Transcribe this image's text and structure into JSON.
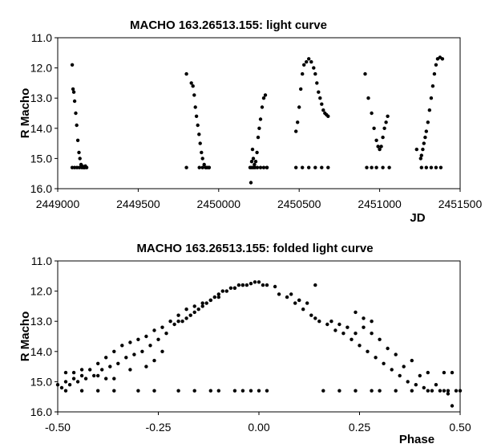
{
  "chart_data": [
    {
      "type": "scatter",
      "title": "MACHO 163.26513.155: light curve",
      "xlabel": "JD",
      "ylabel": "R Macho",
      "xlim": [
        2449000,
        2451500
      ],
      "ylim": [
        11.0,
        16.0
      ],
      "y_inverted": true,
      "x_ticks": [
        "2449000",
        "2449500",
        "2450000",
        "2450500",
        "2451000",
        "2451500"
      ],
      "y_ticks": [
        "11.0",
        "12.0",
        "13.0",
        "14.0",
        "15.0",
        "16.0"
      ],
      "series": [
        {
          "x": [
            2449090,
            2449095,
            2449100,
            2449105,
            2449112,
            2449118,
            2449125,
            2449132,
            2449138,
            2449145,
            2449152,
            2449160,
            2449168,
            2449172,
            2449090,
            2449105,
            2449120,
            2449135,
            2449150,
            2449165,
            2449180,
            2449800,
            2449830,
            2449840,
            2449848,
            2449855,
            2449862,
            2449870,
            2449878,
            2449885,
            2449893,
            2449900,
            2449910,
            2449920,
            2449930,
            2449940,
            2449880,
            2449900,
            2449920,
            2449940,
            2449800,
            2450200,
            2450205,
            2450210,
            2450215,
            2450222,
            2450230,
            2450238,
            2450245,
            2450252,
            2450260,
            2450270,
            2450280,
            2450290,
            2450300,
            2450195,
            2450205,
            2450215,
            2450225,
            2450240,
            2450260,
            2450280,
            2450300,
            2450480,
            2450490,
            2450500,
            2450510,
            2450520,
            2450530,
            2450545,
            2450560,
            2450575,
            2450590,
            2450600,
            2450610,
            2450620,
            2450630,
            2450640,
            2450650,
            2450660,
            2450670,
            2450680,
            2450480,
            2450520,
            2450560,
            2450600,
            2450640,
            2450680,
            2450910,
            2450930,
            2450950,
            2450965,
            2450980,
            2450990,
            2451000,
            2451010,
            2451020,
            2451030,
            2451040,
            2451050,
            2450920,
            2450950,
            2450980,
            2451020,
            2451060,
            2451230,
            2451255,
            2451260,
            2451268,
            2451275,
            2451283,
            2451290,
            2451300,
            2451310,
            2451320,
            2451330,
            2451340,
            2451350,
            2451360,
            2451375,
            2451390,
            2451260,
            2451290,
            2451320,
            2451350,
            2451380
          ],
          "y": [
            11.9,
            12.7,
            12.8,
            13.1,
            13.5,
            13.9,
            14.4,
            14.8,
            15.0,
            15.2,
            15.25,
            15.3,
            15.3,
            15.25,
            15.3,
            15.3,
            15.3,
            15.3,
            15.3,
            15.3,
            15.3,
            12.2,
            12.5,
            12.6,
            12.9,
            13.3,
            13.6,
            13.9,
            14.2,
            14.5,
            14.8,
            15.0,
            15.2,
            15.3,
            15.3,
            15.3,
            15.3,
            15.3,
            15.3,
            15.3,
            15.3,
            15.8,
            15.1,
            14.7,
            15.0,
            15.2,
            15.1,
            14.8,
            14.3,
            14.0,
            13.7,
            13.3,
            13.0,
            12.9,
            15.3,
            15.3,
            15.3,
            15.3,
            15.3,
            15.3,
            15.3,
            15.3,
            15.3,
            14.1,
            13.8,
            13.3,
            12.7,
            12.2,
            11.9,
            11.8,
            11.7,
            11.8,
            12.0,
            12.2,
            12.5,
            12.8,
            13.0,
            13.2,
            13.4,
            13.5,
            13.55,
            13.6,
            15.3,
            15.3,
            15.3,
            15.3,
            15.3,
            15.3,
            12.2,
            13.0,
            13.5,
            14.0,
            14.4,
            14.6,
            14.7,
            14.6,
            14.3,
            14.0,
            13.8,
            13.6,
            15.3,
            15.3,
            15.3,
            15.3,
            15.3,
            14.7,
            15.0,
            14.9,
            14.7,
            14.5,
            14.3,
            14.1,
            13.8,
            13.4,
            13.0,
            12.6,
            12.2,
            11.9,
            11.7,
            11.65,
            11.7,
            15.3,
            15.3,
            15.3,
            15.3,
            15.3
          ]
        }
      ]
    },
    {
      "type": "scatter",
      "title": "MACHO 163.26513.155: folded light curve",
      "xlabel": "Phase",
      "ylabel": "R Macho",
      "xlim": [
        -0.5,
        0.5
      ],
      "ylim": [
        11.0,
        16.0
      ],
      "y_inverted": true,
      "x_ticks": [
        "-0.50",
        "-0.25",
        "0.00",
        "0.25",
        "0.50"
      ],
      "y_ticks": [
        "11.0",
        "12.0",
        "13.0",
        "14.0",
        "15.0",
        "16.0"
      ],
      "series": [
        {
          "x": [
            -0.5,
            -0.48,
            -0.46,
            -0.44,
            -0.42,
            -0.4,
            -0.38,
            -0.36,
            -0.34,
            -0.32,
            -0.3,
            -0.28,
            -0.26,
            -0.24,
            -0.22,
            -0.2,
            -0.18,
            -0.16,
            -0.14,
            -0.12,
            -0.1,
            -0.08,
            -0.06,
            -0.04,
            -0.02,
            0.0,
            0.02,
            -0.49,
            -0.47,
            -0.45,
            -0.43,
            -0.41,
            -0.39,
            -0.37,
            -0.35,
            -0.33,
            -0.31,
            -0.29,
            -0.27,
            -0.25,
            -0.23,
            -0.21,
            -0.19,
            -0.17,
            -0.15,
            -0.13,
            -0.11,
            -0.09,
            -0.07,
            -0.05,
            -0.03,
            -0.01,
            0.01,
            -0.48,
            -0.46,
            -0.44,
            -0.4,
            -0.38,
            -0.36,
            -0.32,
            -0.28,
            -0.26,
            -0.24,
            -0.2,
            -0.18,
            -0.16,
            -0.14,
            -0.12,
            -0.1,
            -0.06,
            -0.04,
            0.05,
            0.07,
            0.09,
            0.11,
            0.13,
            0.15,
            0.17,
            0.19,
            0.21,
            0.23,
            0.25,
            0.27,
            0.29,
            0.31,
            0.33,
            0.35,
            0.37,
            0.39,
            0.41,
            0.43,
            0.45,
            0.47,
            0.49,
            0.08,
            0.1,
            0.12,
            0.14,
            0.18,
            0.2,
            0.24,
            0.26,
            0.28,
            0.3,
            0.34,
            0.38,
            0.42,
            0.46,
            0.48,
            0.04,
            0.1,
            0.14,
            0.22,
            0.24,
            0.26,
            0.28,
            0.32,
            0.36,
            0.4,
            0.44,
            0.48,
            -0.48,
            -0.44,
            -0.4,
            -0.36,
            -0.3,
            -0.26,
            -0.2,
            -0.16,
            -0.12,
            -0.1,
            -0.06,
            -0.04,
            -0.02,
            0.0,
            0.02,
            0.16,
            0.2,
            0.24,
            0.28,
            0.3,
            0.34,
            0.38,
            0.42,
            0.46,
            0.5,
            0.47
          ],
          "y": [
            15.1,
            15.0,
            14.9,
            14.8,
            14.6,
            14.4,
            14.2,
            14.0,
            13.8,
            13.7,
            13.6,
            13.5,
            13.3,
            13.2,
            13.0,
            12.8,
            12.6,
            12.5,
            12.4,
            12.3,
            12.2,
            12.0,
            11.9,
            11.8,
            11.75,
            11.7,
            11.8,
            15.2,
            15.1,
            15.0,
            14.9,
            14.8,
            14.6,
            14.5,
            14.4,
            14.2,
            14.1,
            14.0,
            13.8,
            13.6,
            13.4,
            13.1,
            13.0,
            12.8,
            12.6,
            12.4,
            12.2,
            12.0,
            11.9,
            11.8,
            11.8,
            11.7,
            11.8,
            14.7,
            14.7,
            14.6,
            14.8,
            14.9,
            14.9,
            14.6,
            14.5,
            14.3,
            14.0,
            13.0,
            12.9,
            12.7,
            12.5,
            12.3,
            12.1,
            11.9,
            11.8,
            12.1,
            12.2,
            12.4,
            12.6,
            12.8,
            13.0,
            13.1,
            13.3,
            13.4,
            13.6,
            13.8,
            14.0,
            14.2,
            14.4,
            14.6,
            14.8,
            15.0,
            15.1,
            15.2,
            15.3,
            15.3,
            15.4,
            15.3,
            12.1,
            12.3,
            12.4,
            12.9,
            13.0,
            13.1,
            13.4,
            13.2,
            13.4,
            13.6,
            14.1,
            14.3,
            14.7,
            14.7,
            14.7,
            11.85,
            12.3,
            11.8,
            13.2,
            12.7,
            12.9,
            13.0,
            13.9,
            14.5,
            14.8,
            15.1,
            15.8,
            15.3,
            15.3,
            15.3,
            15.3,
            15.3,
            15.3,
            15.3,
            15.3,
            15.3,
            15.3,
            15.3,
            15.3,
            15.3,
            15.3,
            15.3,
            15.3,
            15.3,
            15.3,
            15.3,
            15.3,
            15.3,
            15.3,
            15.3,
            15.3,
            15.3,
            15.3
          ]
        }
      ]
    }
  ]
}
